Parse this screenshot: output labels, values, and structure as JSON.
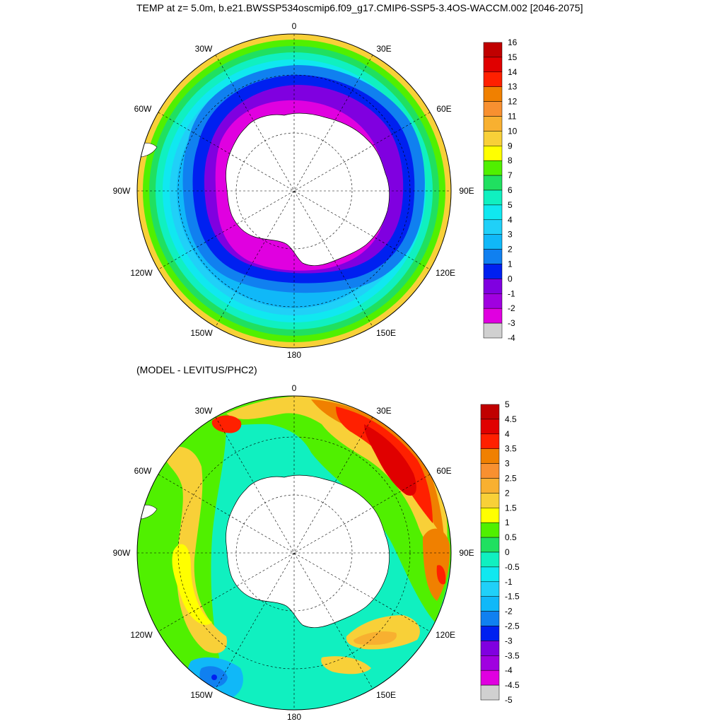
{
  "title": "TEMP at z=   5.0m, b.e21.BWSSP534oscmip6.f09_g17.CMIP6-SSP5-3.4OS-WACCM.002 [2046-2075]",
  "subtitle": "(MODEL - LEVITUS/PHC2)",
  "longitude_labels": {
    "top": "0",
    "upper_left": "30W",
    "upper_right": "30E",
    "left_upper": "60W",
    "right_upper": "60E",
    "left": "90W",
    "right": "90E",
    "left_lower": "120W",
    "right_lower": "120E",
    "bottom_left": "150W",
    "bottom_right": "150E",
    "bottom": "180"
  },
  "top_map": {
    "colorbar": {
      "labels": [
        "16",
        "15",
        "14",
        "13",
        "12",
        "11",
        "10",
        "9",
        "8",
        "7",
        "6",
        "5",
        "4",
        "3",
        "2",
        "1",
        "0",
        "-1",
        "-2",
        "-3",
        "-4"
      ],
      "colors": [
        "#c00000",
        "#e00000",
        "#ff2000",
        "#f08000",
        "#f89030",
        "#f8b030",
        "#f8d038",
        "#ffff00",
        "#50f000",
        "#20e060",
        "#10f0c0",
        "#10e8f0",
        "#20d0f8",
        "#10b8f8",
        "#1080f0",
        "#0020f0",
        "#8000e0",
        "#a000e0",
        "#e000e0",
        "#d0d0d0",
        "#707070"
      ]
    }
  },
  "bottom_map": {
    "colorbar": {
      "labels": [
        "5",
        "4.5",
        "4",
        "3.5",
        "3",
        "2.5",
        "2",
        "1.5",
        "1",
        "0.5",
        "0",
        "-0.5",
        "-1",
        "-1.5",
        "-2",
        "-2.5",
        "-3",
        "-3.5",
        "-4",
        "-4.5",
        "-5"
      ],
      "colors": [
        "#c00000",
        "#e00000",
        "#ff2000",
        "#f08000",
        "#f89030",
        "#f8b030",
        "#f8d038",
        "#ffff00",
        "#50f000",
        "#20e060",
        "#10f0c0",
        "#10e8f0",
        "#20d0f8",
        "#10b8f8",
        "#1080f0",
        "#0020f0",
        "#8000e0",
        "#a000e0",
        "#e000e0",
        "#d0d0d0",
        "#707070"
      ]
    }
  }
}
